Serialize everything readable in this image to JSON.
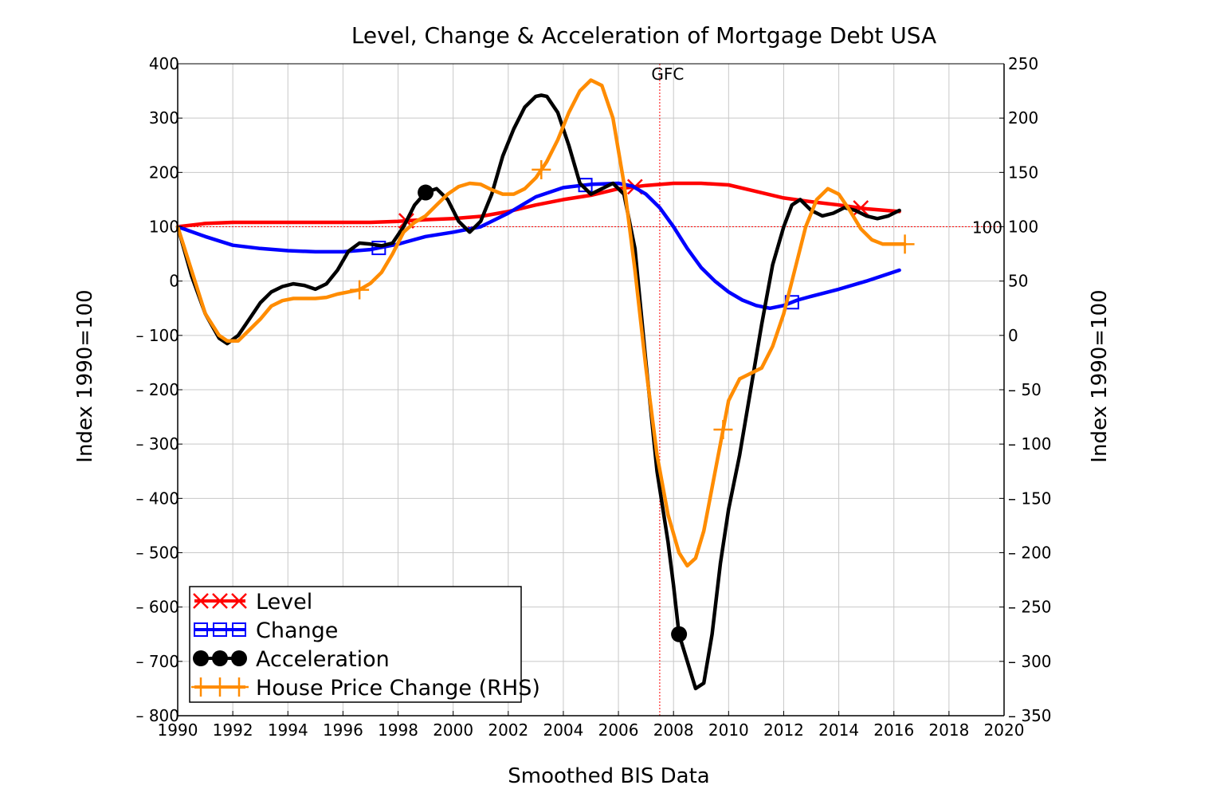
{
  "chart_data": {
    "type": "line",
    "title": "Level, Change & Acceleration of Mortgage Debt USA",
    "xlabel": "Smoothed BIS Data",
    "ylabel_left": "Index 1990=100",
    "ylabel_right": "Index 1990=100",
    "xlim": [
      1990,
      2020
    ],
    "ylim_left": [
      -800,
      400
    ],
    "ylim_right": [
      -350,
      250
    ],
    "x_ticks": [
      "1990",
      "1992",
      "1994",
      "1996",
      "1998",
      "2000",
      "2002",
      "2004",
      "2006",
      "2008",
      "2010",
      "2012",
      "2014",
      "2016",
      "2018",
      "2020"
    ],
    "y_ticks_left": [
      "400",
      "300",
      "200",
      "100",
      "0",
      "– 100",
      "– 200",
      "– 300",
      "– 400",
      "– 500",
      "– 600",
      "– 700",
      "– 800"
    ],
    "y_ticks_right": [
      "250",
      "200",
      "150",
      "100",
      "50",
      "0",
      "– 50",
      "– 100",
      "– 150",
      "– 200",
      "– 250",
      "– 300",
      "– 350"
    ],
    "grid": true,
    "legend_position": "bottom-left",
    "annotations": [
      {
        "text": "GFC",
        "x": 2007.5
      },
      {
        "text": "100",
        "y": 100
      }
    ],
    "reference_lines": {
      "vertical_x": 2007.5,
      "horizontal_y_left": 100
    },
    "series": [
      {
        "name": "Level",
        "axis": "left",
        "color": "#ff0000",
        "marker": "x",
        "marker_x": [
          1998.3,
          2006.6,
          2014.8
        ],
        "x": [
          1990,
          1991,
          1992,
          1993,
          1994,
          1995,
          1996,
          1997,
          1998,
          1999,
          2000,
          2001,
          2002,
          2003,
          2004,
          2005,
          2006,
          2007,
          2008,
          2009,
          2010,
          2011,
          2012,
          2013,
          2014,
          2015,
          2016.2
        ],
        "y": [
          100,
          106,
          108,
          108,
          108,
          108,
          108,
          108,
          110,
          113,
          115,
          119,
          128,
          140,
          150,
          158,
          170,
          176,
          180,
          180,
          177,
          165,
          153,
          146,
          140,
          133,
          128
        ]
      },
      {
        "name": "Change",
        "axis": "left",
        "color": "#0000ff",
        "marker": "square",
        "marker_x": [
          1997.3,
          2004.8,
          2012.3
        ],
        "x": [
          1990,
          1991,
          1992,
          1993,
          1994,
          1995,
          1996,
          1997,
          1998,
          1999,
          2000,
          2001,
          2002,
          2003,
          2004,
          2005,
          2006,
          2006.5,
          2007,
          2007.5,
          2008,
          2008.5,
          2009,
          2009.5,
          2010,
          2010.5,
          2011,
          2011.5,
          2012,
          2012.5,
          2013,
          2014,
          2015,
          2016.2
        ],
        "y": [
          100,
          82,
          66,
          60,
          56,
          54,
          54,
          58,
          68,
          82,
          90,
          100,
          125,
          155,
          172,
          178,
          180,
          175,
          160,
          135,
          100,
          60,
          25,
          0,
          -20,
          -35,
          -45,
          -50,
          -45,
          -35,
          -28,
          -15,
          0,
          20
        ]
      },
      {
        "name": "Acceleration",
        "axis": "left",
        "color": "#000000",
        "marker": "circle",
        "marker_x": [
          1999,
          2008.2
        ],
        "x": [
          1990,
          1990.5,
          1991,
          1991.5,
          1991.8,
          1992.2,
          1992.6,
          1993,
          1993.4,
          1993.8,
          1994.2,
          1994.6,
          1995,
          1995.4,
          1995.8,
          1996.2,
          1996.6,
          1997,
          1997.4,
          1997.8,
          1998.2,
          1998.6,
          1999,
          1999.4,
          1999.8,
          2000.2,
          2000.6,
          2001,
          2001.4,
          2001.8,
          2002.2,
          2002.6,
          2003,
          2003.2,
          2003.4,
          2003.8,
          2004.2,
          2004.6,
          2005,
          2005.4,
          2005.8,
          2006.2,
          2006.6,
          2007,
          2007.4,
          2007.8,
          2008,
          2008.2,
          2008.5,
          2008.8,
          2009.1,
          2009.4,
          2009.7,
          2010,
          2010.4,
          2010.8,
          2011.2,
          2011.6,
          2012,
          2012.3,
          2012.6,
          2013,
          2013.4,
          2013.8,
          2014.2,
          2014.6,
          2015,
          2015.4,
          2015.8,
          2016.2
        ],
        "y": [
          100,
          10,
          -60,
          -105,
          -115,
          -100,
          -70,
          -40,
          -20,
          -10,
          -5,
          -8,
          -15,
          -5,
          20,
          55,
          70,
          68,
          65,
          70,
          100,
          140,
          163,
          170,
          150,
          110,
          90,
          110,
          160,
          230,
          280,
          320,
          340,
          342,
          340,
          310,
          250,
          180,
          160,
          170,
          180,
          160,
          60,
          -150,
          -350,
          -480,
          -560,
          -650,
          -700,
          -750,
          -740,
          -650,
          -520,
          -420,
          -320,
          -200,
          -80,
          30,
          100,
          140,
          150,
          130,
          120,
          125,
          135,
          130,
          120,
          115,
          120,
          130
        ]
      },
      {
        "name": "House Price Change (RHS)",
        "axis": "right",
        "color": "#ff8c00",
        "marker": "plus",
        "marker_x": [
          1996.6,
          2003.2,
          2009.8,
          2016.4
        ],
        "x": [
          1990,
          1990.5,
          1991,
          1991.5,
          1991.8,
          1992.2,
          1992.6,
          1993,
          1993.4,
          1993.8,
          1994.2,
          1994.6,
          1995,
          1995.4,
          1995.8,
          1996.2,
          1996.6,
          1997,
          1997.4,
          1997.8,
          1998.2,
          1998.6,
          1999,
          1999.4,
          1999.8,
          2000.2,
          2000.6,
          2001,
          2001.4,
          2001.8,
          2002.2,
          2002.6,
          2003,
          2003.4,
          2003.8,
          2004.2,
          2004.6,
          2005,
          2005.4,
          2005.8,
          2006.2,
          2006.6,
          2007,
          2007.4,
          2007.8,
          2008.2,
          2008.5,
          2008.8,
          2009.1,
          2009.4,
          2009.7,
          2010,
          2010.4,
          2010.8,
          2011.2,
          2011.6,
          2012,
          2012.4,
          2012.8,
          2013.2,
          2013.6,
          2014,
          2014.4,
          2014.8,
          2015.2,
          2015.6,
          2016,
          2016.4
        ],
        "y": [
          100,
          60,
          20,
          0,
          -5,
          -5,
          5,
          15,
          27,
          32,
          34,
          34,
          34,
          35,
          38,
          40,
          42,
          48,
          58,
          75,
          95,
          104,
          110,
          120,
          130,
          137,
          140,
          139,
          134,
          130,
          130,
          135,
          145,
          160,
          180,
          205,
          225,
          235,
          230,
          200,
          140,
          60,
          -30,
          -110,
          -165,
          -200,
          -212,
          -205,
          -180,
          -140,
          -100,
          -60,
          -40,
          -35,
          -30,
          -10,
          20,
          60,
          100,
          125,
          135,
          130,
          115,
          98,
          88,
          84,
          84,
          84
        ]
      }
    ]
  }
}
